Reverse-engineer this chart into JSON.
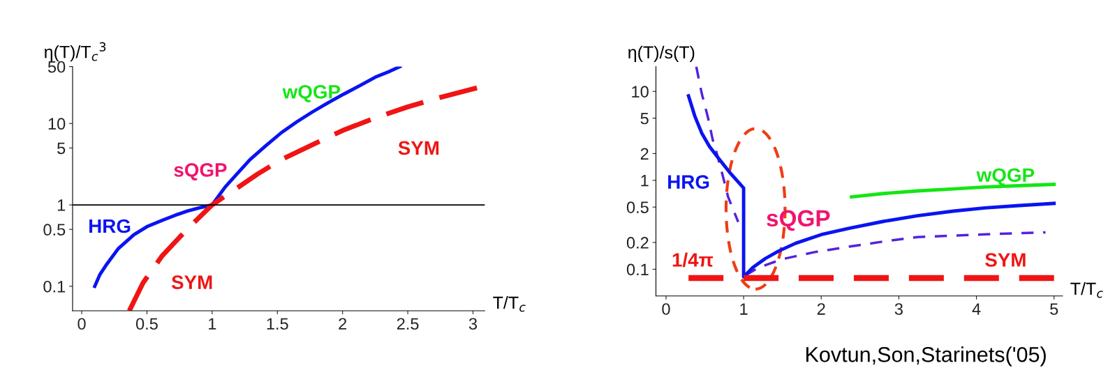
{
  "chart_data": [
    {
      "type": "line",
      "xlabel": "T/T$_{c}$",
      "ylabel": "η(T)/T$_{c}$$^{3}$",
      "log": "y",
      "xlim": [
        -0.07,
        3.09
      ],
      "ylim": [
        0.05,
        50
      ],
      "xticks": [
        0,
        0.5,
        1,
        1.5,
        2,
        2.5,
        3
      ],
      "yticks": [
        0.1,
        0.5,
        1,
        5,
        10,
        50
      ],
      "grid": false,
      "legend": false,
      "marker": "none",
      "series": [
        {
          "color": "#0a14f0",
          "line_style": "solid",
          "x": [
            0.1,
            0.14,
            0.185,
            0.28,
            0.4,
            0.5,
            0.62,
            0.72,
            0.81,
            0.9,
            1,
            1.1,
            1.2,
            1.29,
            1.41,
            1.53,
            1.65,
            1.77,
            1.89,
            2.01,
            2.13,
            2.25,
            2.35,
            2.44
          ],
          "values": [
            0.1,
            0.14,
            0.18,
            0.29,
            0.43,
            0.54,
            0.65,
            0.75,
            0.84,
            0.92,
            1,
            1.66,
            2.5,
            3.6,
            5.3,
            7.7,
            10.5,
            13.9,
            18,
            23,
            29,
            37,
            43,
            50
          ]
        },
        {
          "color": "#f01414",
          "line_style": "dashed",
          "x": [
            0.365,
            0.47,
            0.616,
            0.81,
            1,
            1.17,
            1.35,
            1.53,
            1.77,
            2.0,
            2.25,
            2.5,
            2.73,
            3.03
          ],
          "values": [
            0.05,
            0.11,
            0.236,
            0.507,
            1,
            1.53,
            2.4,
            3.6,
            5.5,
            8.2,
            11.7,
            16,
            20.5,
            27.4
          ]
        }
      ],
      "ref_lines": [
        {
          "axis": "y",
          "value": 1,
          "color": "#000000"
        }
      ],
      "annotations": [
        "wQGP",
        "SYM",
        "sQGP",
        "HRG",
        "SYM"
      ]
    },
    {
      "type": "line",
      "xlabel": "T/T$_{c}$",
      "ylabel": "η(T)/s(T)",
      "log": "y",
      "xlim": [
        -0.13,
        5.11
      ],
      "ylim": [
        0.05,
        19
      ],
      "xticks": [
        0,
        1,
        2,
        3,
        4,
        5
      ],
      "yticks": [
        0.1,
        0.2,
        0.5,
        1,
        2,
        5,
        10
      ],
      "grid": false,
      "legend": false,
      "marker": "none",
      "series": [
        {
          "color": "#5522dd",
          "line_style": "dashed",
          "x": [
            0.39,
            0.46,
            0.54,
            0.6,
            0.67,
            0.74,
            0.8,
            0.87,
            0.93,
            0.97,
            1.02,
            1.2,
            1.5,
            1.9,
            2.37,
            2.8,
            3.24,
            4.0,
            4.89
          ],
          "values": [
            19,
            9.5,
            5.1,
            2.9,
            1.8,
            1.05,
            0.65,
            0.46,
            0.34,
            null,
            0.085,
            0.105,
            0.13,
            0.155,
            0.18,
            0.205,
            0.23,
            0.245,
            0.26
          ]
        },
        {
          "color": "#0a14f0",
          "line_style": "solid",
          "x": [
            0.29,
            0.37,
            0.46,
            0.56,
            0.67,
            0.83,
            1,
            1,
            1.12,
            1.28,
            1.45,
            1.67,
            2.0,
            2.37,
            2.8,
            3.24,
            3.7,
            4.11,
            4.55,
            5
          ],
          "values": [
            8.9,
            5.3,
            3.4,
            2.4,
            1.8,
            1.2,
            0.82,
            0.082,
            0.105,
            0.132,
            0.16,
            0.196,
            0.245,
            0.29,
            0.345,
            0.4,
            0.45,
            0.49,
            0.52,
            0.55
          ]
        },
        {
          "color": "#14e614",
          "line_style": "solid",
          "x": [
            2.39,
            2.8,
            3.24,
            3.7,
            4.11,
            4.55,
            5
          ],
          "values": [
            0.65,
            0.71,
            0.76,
            0.8,
            0.84,
            0.87,
            0.9
          ]
        },
        {
          "color": "#f01414",
          "line_style": "dashed",
          "x": [
            0.29,
            5
          ],
          "values": [
            0.0796,
            0.0796
          ]
        }
      ],
      "annotations": [
        "HRG",
        "wQGP",
        "sQGP",
        "SYM",
        "1/4π",
        "Kovtun,Son,Starinets('05)"
      ]
    }
  ]
}
